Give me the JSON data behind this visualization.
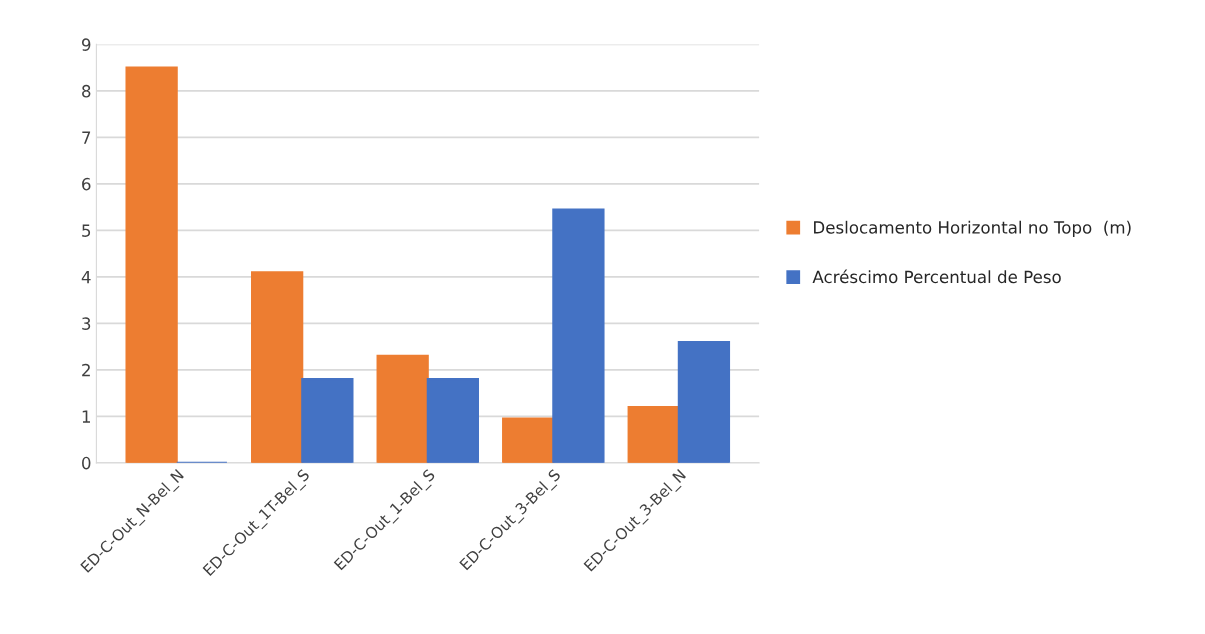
{
  "chart_data": {
    "type": "bar",
    "categories": [
      "ED-C-Out_N-Bel_N",
      "ED-C-Out_1T-Bel_S",
      "ED-C-Out_1-Bel_S",
      "ED-C-Out_3-Bel_S",
      "ED-C-Out_3-Bel_N"
    ],
    "series": [
      {
        "name": "Deslocamento Horizontal no Topo  (m)",
        "color": "#ed7d31",
        "values": [
          8.5,
          4.1,
          2.3,
          0.95,
          1.2
        ]
      },
      {
        "name": "Acréscimo Percentual de Peso",
        "color": "#4472c4",
        "values": [
          0,
          1.8,
          1.8,
          5.45,
          2.6
        ]
      }
    ],
    "ylim": [
      0,
      9
    ],
    "yticks": [
      0,
      1,
      2,
      3,
      4,
      5,
      6,
      7,
      8,
      9
    ],
    "grid": "y",
    "legend": "right"
  }
}
